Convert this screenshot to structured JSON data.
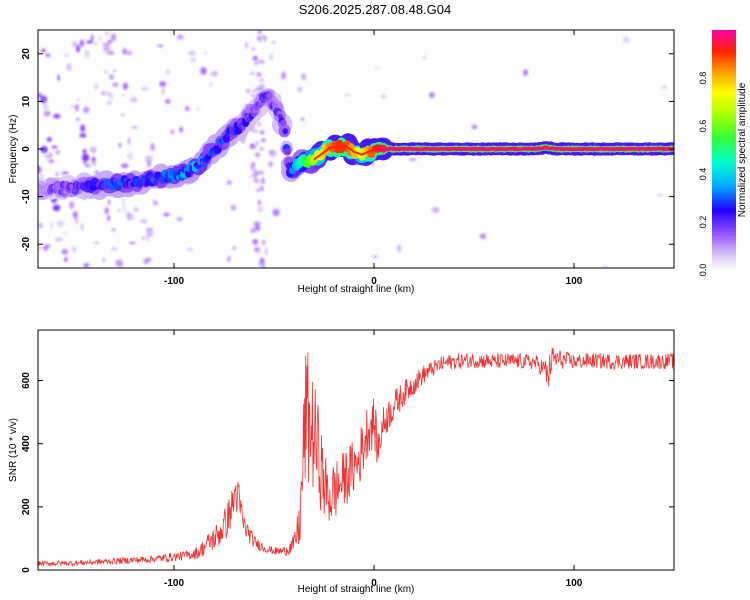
{
  "figure": {
    "title": "S206.2025.287.08.48.G04"
  },
  "chart_data": [
    {
      "type": "heatmap",
      "name": "spectrogram",
      "xlabel": "Height of straight line (km)",
      "ylabel": "Frequency (Hz)",
      "xlim": [
        -168,
        150
      ],
      "ylim": [
        -25,
        25
      ],
      "xticks": [
        -100,
        0,
        100
      ],
      "yticks": [
        -20,
        -10,
        0,
        10,
        20
      ],
      "ridge": {
        "x": [
          -168,
          -150,
          -135,
          -120,
          -105,
          -95,
          -88,
          -82,
          -76,
          -72,
          -68,
          -63,
          -58,
          -54,
          -48,
          -45,
          -42,
          -38,
          -34,
          -30,
          -26,
          -22,
          -18,
          -14,
          -10,
          -6,
          -2,
          2,
          10,
          40,
          80,
          86,
          92,
          120,
          148
        ],
        "y": [
          -8.5,
          -8.2,
          -7.5,
          -7,
          -6,
          -5,
          -3.5,
          -1,
          1.5,
          3.5,
          4.5,
          6.5,
          9,
          11.5,
          8,
          5,
          -5,
          -3,
          -2.5,
          -2.2,
          -1,
          0.3,
          0.4,
          0.6,
          -0.6,
          -1.2,
          -0.4,
          0.1,
          0,
          0,
          0,
          0.3,
          0,
          0,
          0
        ],
        "amplitude": [
          0.15,
          0.2,
          0.3,
          0.3,
          0.3,
          0.35,
          0.35,
          0.3,
          0.3,
          0.3,
          0.25,
          0.25,
          0.2,
          0.2,
          0.2,
          0.25,
          0.3,
          0.4,
          0.55,
          0.65,
          0.75,
          0.85,
          0.9,
          0.9,
          0.8,
          0.7,
          0.85,
          0.95,
          1,
          1,
          1,
          1,
          1,
          1,
          1
        ]
      }
    },
    {
      "type": "line",
      "name": "snr",
      "xlabel": "Height of straight line (km)",
      "ylabel": "SNR (10 * v/v)",
      "xlim": [
        -168,
        150
      ],
      "ylim": [
        0,
        760
      ],
      "xticks": [
        -100,
        0,
        100
      ],
      "yticks": [
        0,
        200,
        400,
        600
      ],
      "series": [
        {
          "name": "SNR",
          "color": "#ee3333",
          "x": [
            -168,
            -150,
            -130,
            -110,
            -95,
            -88,
            -82,
            -78,
            -74,
            -71,
            -69,
            -67,
            -65,
            -63,
            -60,
            -55,
            -50,
            -45,
            -40,
            -37,
            -35,
            -34,
            -32,
            -30,
            -28,
            -26,
            -24,
            -22,
            -20,
            -16,
            -12,
            -8,
            -5,
            -3,
            0,
            2,
            4,
            6,
            10,
            15,
            20,
            25,
            30,
            35,
            40,
            50,
            60,
            70,
            80,
            85,
            87,
            89,
            95,
            100,
            110,
            120,
            130,
            140,
            150
          ],
          "mean": [
            20,
            22,
            28,
            35,
            45,
            55,
            90,
            110,
            150,
            200,
            250,
            200,
            140,
            120,
            90,
            70,
            60,
            60,
            80,
            150,
            400,
            500,
            450,
            420,
            380,
            300,
            250,
            230,
            250,
            280,
            310,
            340,
            400,
            450,
            470,
            380,
            450,
            480,
            520,
            560,
            590,
            620,
            640,
            655,
            660,
            665,
            660,
            662,
            658,
            640,
            610,
            670,
            665,
            660,
            663,
            660,
            661,
            660,
            662
          ],
          "noise": [
            8,
            8,
            10,
            12,
            15,
            20,
            35,
            45,
            55,
            60,
            70,
            60,
            40,
            30,
            20,
            15,
            12,
            15,
            30,
            80,
            200,
            230,
            200,
            180,
            150,
            130,
            110,
            100,
            100,
            90,
            90,
            90,
            90,
            90,
            80,
            70,
            60,
            55,
            50,
            40,
            35,
            30,
            25,
            25,
            25,
            25,
            25,
            25,
            25,
            30,
            60,
            40,
            28,
            25,
            25,
            25,
            25,
            25,
            25
          ]
        }
      ]
    }
  ],
  "colorbar": {
    "label": "Normalized spectral amplitude",
    "ticks": [
      "0.0",
      "0.2",
      "0.4",
      "0.6",
      "0.8"
    ]
  }
}
